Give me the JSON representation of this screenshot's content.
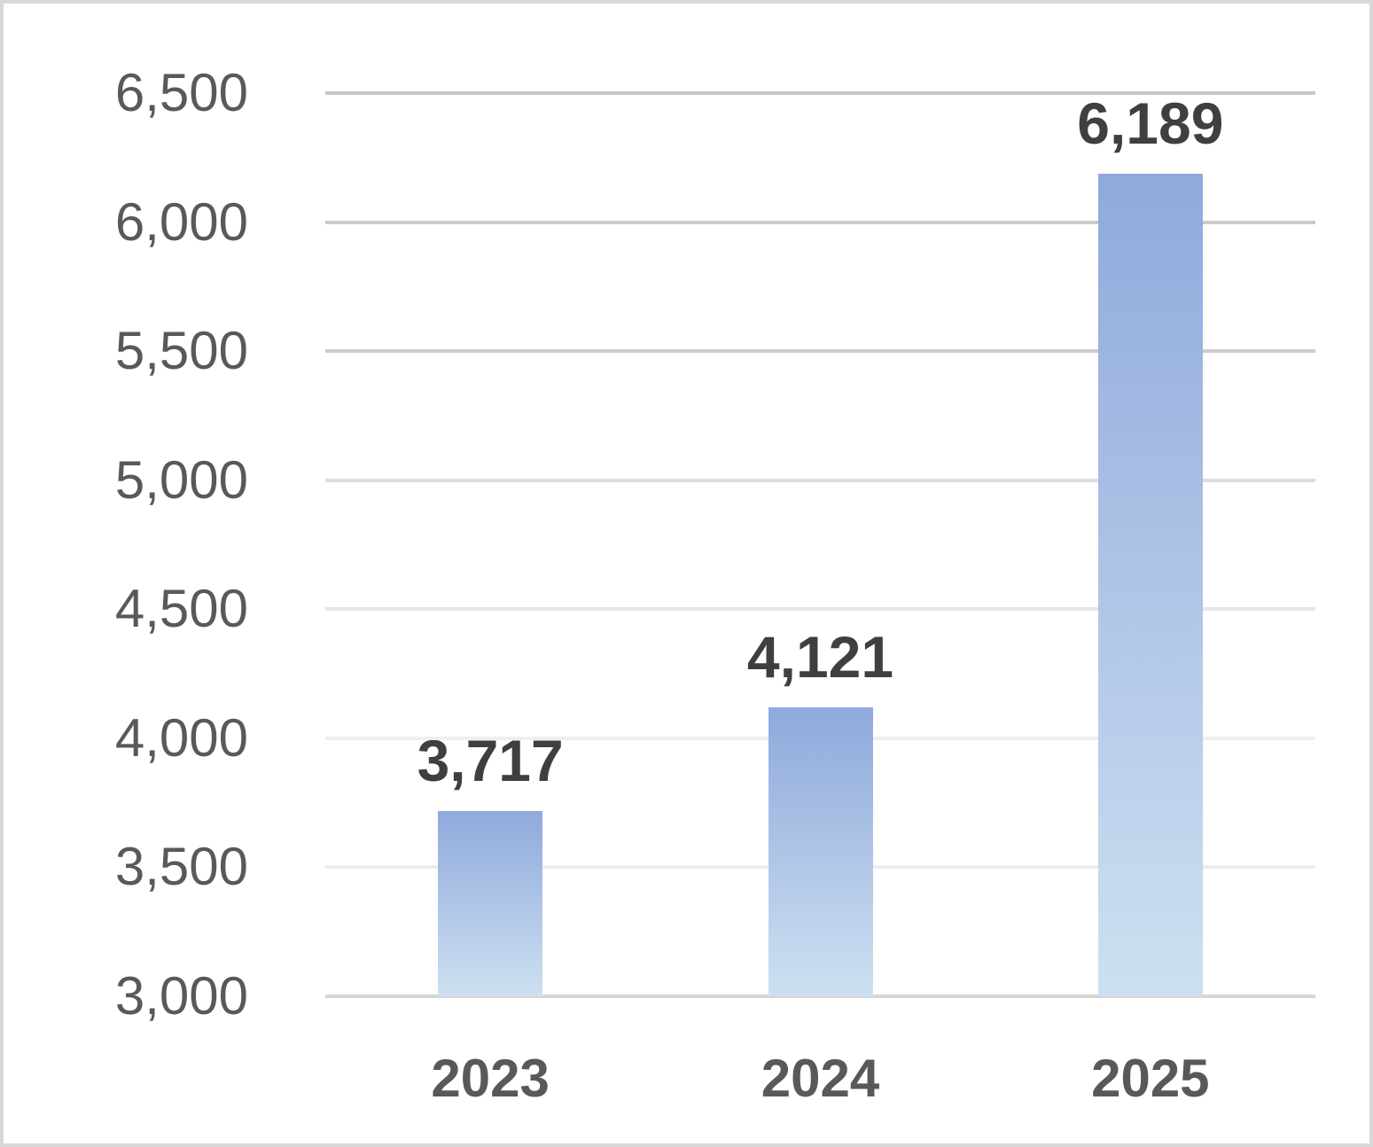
{
  "chart_data": {
    "type": "bar",
    "title": "",
    "xlabel": "",
    "ylabel": "",
    "categories": [
      "2023",
      "2024",
      "2025"
    ],
    "values": [
      3717,
      4121,
      6189
    ],
    "data_labels": [
      "3,717",
      "4,121",
      "6,189"
    ],
    "ylim": [
      3000,
      6500
    ],
    "y_tick_step": 500,
    "y_ticks": [
      6500,
      6000,
      5500,
      5000,
      4500,
      4000,
      3500,
      3000
    ],
    "y_tick_labels": [
      "6,500",
      "6,000",
      "5,500",
      "5,000",
      "4,500",
      "4,000",
      "3,500",
      "3,000"
    ],
    "grid": true,
    "legend": false,
    "colors": {
      "bar_gradient_top": "#8FA9DC",
      "bar_gradient_bottom": "#CDE0F1",
      "value_label": "#3F3F3F",
      "axis_tick_label": "#595959",
      "category_label": "#595959",
      "chart_border": "#D8D8D8",
      "background": "#FFFFFF"
    },
    "gridline_colors": [
      "#C7C7C7",
      "#CACACA",
      "#CDCDCD",
      "#DEDEDE",
      "#E6E6E6",
      "#EFEFEF",
      "#EDEDED",
      "#D6D6D6"
    ]
  }
}
